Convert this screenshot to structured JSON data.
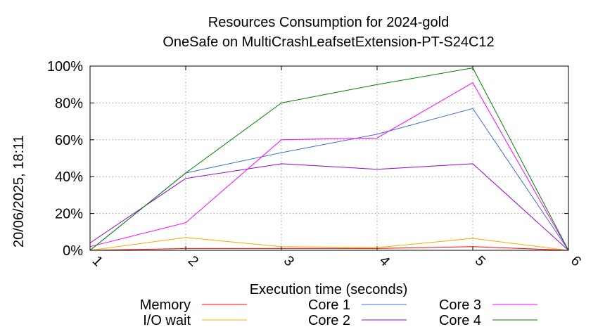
{
  "chart_data": {
    "type": "line",
    "title": "Resources Consumption for 2024-gold",
    "subtitle": "OneSafe on MultiCrashLeafsetExtension-PT-S24C12",
    "xlabel": "Execution time (seconds)",
    "ylabel": "",
    "side_label": "20/06/2025, 18:11",
    "x": [
      1,
      2,
      3,
      4,
      5,
      6
    ],
    "xlim": [
      1,
      6
    ],
    "ylim": [
      0,
      100
    ],
    "y_ticks": [
      "0%",
      "20%",
      "40%",
      "60%",
      "80%",
      "100%"
    ],
    "x_ticks": [
      "1",
      "2",
      "3",
      "4",
      "5",
      "6"
    ],
    "grid": true,
    "legend_position": "bottom",
    "series": [
      {
        "name": "Memory",
        "color": "#ff0000",
        "values": [
          0,
          1,
          1,
          1,
          2,
          0
        ]
      },
      {
        "name": "I/O wait",
        "color": "#ffa500",
        "values": [
          0,
          7,
          2,
          1.5,
          6.5,
          0
        ]
      },
      {
        "name": "Core 1",
        "color": "#4169e1",
        "values": [
          0,
          42,
          53,
          63,
          77,
          0
        ]
      },
      {
        "name": "Core 2",
        "color": "#9400d3",
        "values": [
          4,
          39,
          47,
          44,
          47,
          0
        ]
      },
      {
        "name": "Core 3",
        "color": "#ff00ff",
        "values": [
          2,
          15,
          60,
          61,
          91,
          0
        ]
      },
      {
        "name": "Core 4",
        "color": "#008000",
        "values": [
          0,
          42,
          80,
          90,
          99,
          0
        ]
      }
    ]
  }
}
